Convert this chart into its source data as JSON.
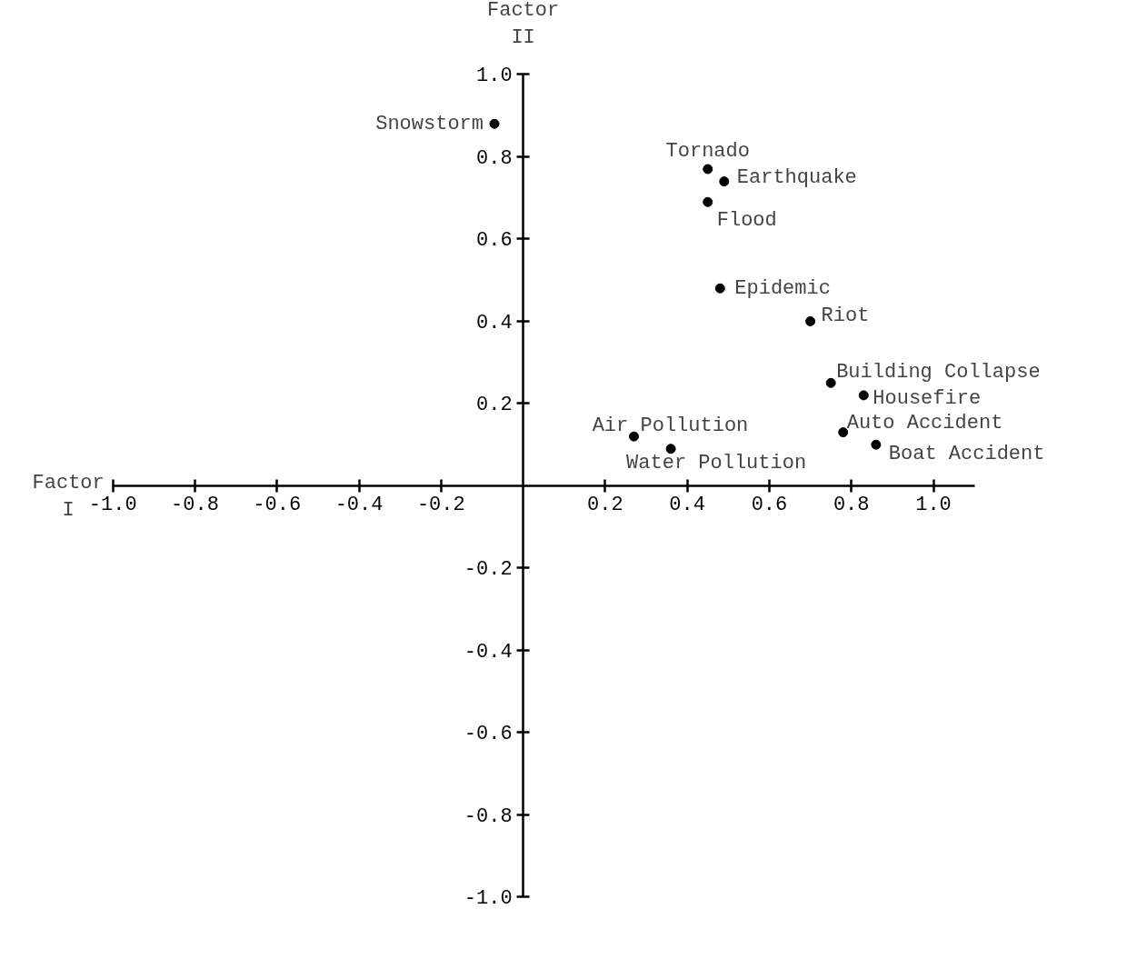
{
  "chart_data": {
    "type": "scatter",
    "xlabel": "Factor I",
    "ylabel": "Factor II",
    "marker": "circle",
    "grid": false,
    "xlim": [
      -1.0,
      1.1
    ],
    "ylim": [
      -1.0,
      1.0
    ],
    "xticks": [
      {
        "value": -1.0,
        "label": "-1.0"
      },
      {
        "value": -0.8,
        "label": "-0.8"
      },
      {
        "value": -0.6,
        "label": "-0.6"
      },
      {
        "value": -0.4,
        "label": "-0.4"
      },
      {
        "value": -0.2,
        "label": "-0.2"
      },
      {
        "value": 0.2,
        "label": "0.2"
      },
      {
        "value": 0.4,
        "label": "0.4"
      },
      {
        "value": 0.6,
        "label": "0.6"
      },
      {
        "value": 0.8,
        "label": "0.8"
      },
      {
        "value": 1.0,
        "label": "1.0"
      }
    ],
    "yticks": [
      {
        "value": 1.0,
        "label": "1.0"
      },
      {
        "value": 0.8,
        "label": "0.8"
      },
      {
        "value": 0.6,
        "label": "0.6"
      },
      {
        "value": 0.4,
        "label": "0.4"
      },
      {
        "value": 0.2,
        "label": "0.2"
      },
      {
        "value": -0.2,
        "label": "-0.2"
      },
      {
        "value": -0.4,
        "label": "-0.4"
      },
      {
        "value": -0.6,
        "label": "-0.6"
      },
      {
        "value": -0.8,
        "label": "-0.8"
      },
      {
        "value": -1.0,
        "label": "-1.0"
      }
    ],
    "series": [
      {
        "color": "#000000",
        "x": [
          -0.07,
          0.45,
          0.49,
          0.45,
          0.48,
          0.7,
          0.75,
          0.83,
          0.27,
          0.36,
          0.78,
          0.86
        ],
        "values": [
          0.88,
          0.77,
          0.74,
          0.69,
          0.48,
          0.4,
          0.25,
          0.22,
          0.12,
          0.09,
          0.13,
          0.1
        ]
      }
    ],
    "annotations": [
      {
        "text": "Snowstorm",
        "x": -0.07,
        "y": 0.88
      },
      {
        "text": "Tornado",
        "x": 0.45,
        "y": 0.77
      },
      {
        "text": "Earthquake",
        "x": 0.49,
        "y": 0.74
      },
      {
        "text": "Flood",
        "x": 0.45,
        "y": 0.69
      },
      {
        "text": "Epidemic",
        "x": 0.48,
        "y": 0.48
      },
      {
        "text": "Riot",
        "x": 0.7,
        "y": 0.4
      },
      {
        "text": "Building Collapse",
        "x": 0.75,
        "y": 0.25
      },
      {
        "text": "Housefire",
        "x": 0.83,
        "y": 0.22
      },
      {
        "text": "Air Pollution",
        "x": 0.27,
        "y": 0.12
      },
      {
        "text": "Water Pollution",
        "x": 0.36,
        "y": 0.09
      },
      {
        "text": "Auto Accident",
        "x": 0.78,
        "y": 0.13
      },
      {
        "text": "Boat Accident",
        "x": 0.86,
        "y": 0.1
      }
    ]
  }
}
